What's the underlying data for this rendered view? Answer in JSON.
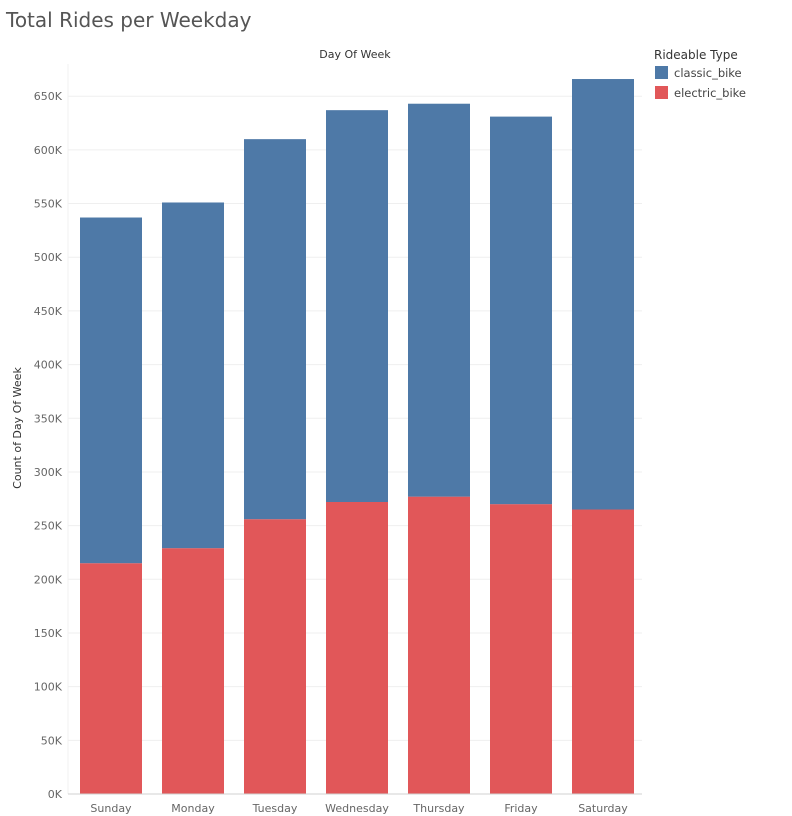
{
  "page": {
    "title": "Total Rides per Weekday"
  },
  "chart_data": {
    "type": "bar",
    "stacked": true,
    "title": "Total Rides per Weekday",
    "column_header": "Day Of Week",
    "xlabel": "",
    "ylabel": "Count of Day Of Week",
    "categories": [
      "Sunday",
      "Monday",
      "Tuesday",
      "Wednesday",
      "Thursday",
      "Friday",
      "Saturday"
    ],
    "series": [
      {
        "name": "electric_bike",
        "color": "#e15759",
        "values": [
          215000,
          229000,
          256000,
          272000,
          277000,
          270000,
          265000
        ]
      },
      {
        "name": "classic_bike",
        "color": "#4e79a7",
        "values": [
          322000,
          322000,
          354000,
          365000,
          366000,
          361000,
          401000
        ]
      }
    ],
    "ylim": [
      0,
      680000
    ],
    "yticks": [
      0,
      50000,
      100000,
      150000,
      200000,
      250000,
      300000,
      350000,
      400000,
      450000,
      500000,
      550000,
      600000,
      650000
    ],
    "ytick_labels": [
      "0K",
      "50K",
      "100K",
      "150K",
      "200K",
      "250K",
      "300K",
      "350K",
      "400K",
      "450K",
      "500K",
      "550K",
      "600K",
      "650K"
    ],
    "grid": true,
    "legend": {
      "title": "Rideable Type",
      "position": "top-right",
      "entries": [
        {
          "label": "classic_bike",
          "color": "#4e79a7"
        },
        {
          "label": "electric_bike",
          "color": "#e15759"
        }
      ]
    }
  }
}
